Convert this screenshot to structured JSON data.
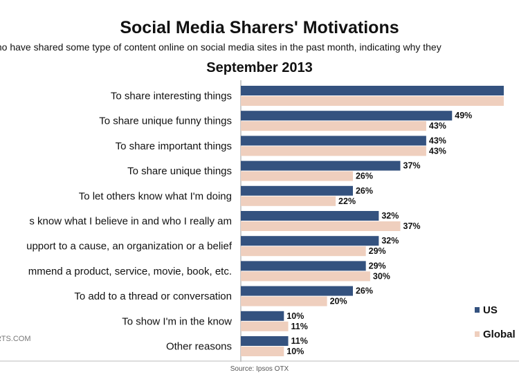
{
  "chart_data": {
    "type": "bar",
    "orientation": "horizontal",
    "title": "Social Media Sharers' Motivations",
    "subtitle": "ts who have shared some type of content online on social media sites in the past month, indicating why they",
    "date_label": "September 2013",
    "categories": [
      "To share interesting things",
      "To share unique funny things",
      "To share important things",
      "To share unique things",
      "To let others know what I'm doing",
      "s know what I believe in and who I really am",
      "upport to a cause, an organization or a belief",
      "mmend a product, service, movie, book, etc.",
      "To add to a thread or conversation",
      "To show I'm in the know",
      "Other reasons"
    ],
    "series": [
      {
        "name": "US",
        "color": "#34527f",
        "values": [
          61,
          49,
          43,
          37,
          26,
          32,
          32,
          29,
          26,
          10,
          11
        ],
        "labels": [
          "",
          "49%",
          "43%",
          "37%",
          "26%",
          "32%",
          "32%",
          "29%",
          "26%",
          "10%",
          "11%"
        ]
      },
      {
        "name": "Global",
        "color": "#efcfbe",
        "values": [
          61,
          43,
          43,
          26,
          22,
          37,
          29,
          30,
          20,
          11,
          10
        ],
        "labels": [
          "",
          "43%",
          "43%",
          "26%",
          "22%",
          "37%",
          "29%",
          "30%",
          "20%",
          "11%",
          "10%"
        ]
      }
    ],
    "legend_position": "bottom-right",
    "grid": false
  },
  "source": "Source: Ipsos OTX",
  "watermark": "RTS.COM"
}
